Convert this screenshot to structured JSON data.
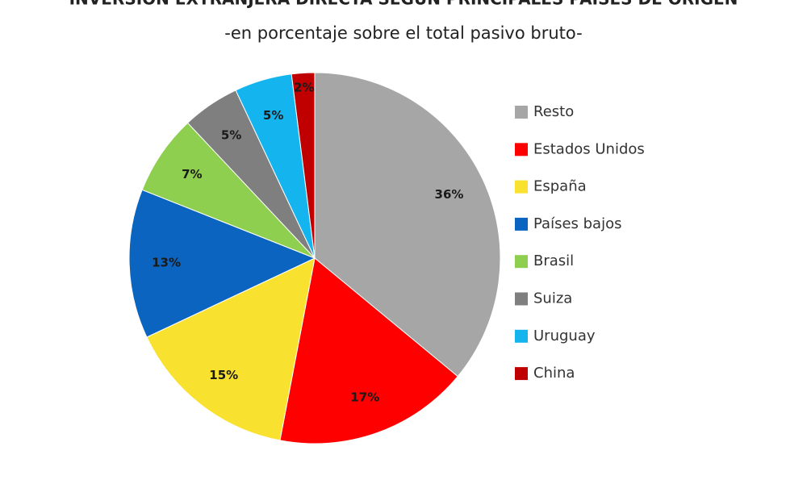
{
  "chart_data": {
    "type": "pie",
    "title": "INVERSIÓN EXTRANJERA DIRECTA SEGÚN PRINCIPALES PAÍSES DE ORIGEN",
    "subtitle": "-en porcentaje sobre el total pasivo bruto-",
    "categories": [
      "Resto",
      "Estados Unidos",
      "España",
      "Países bajos",
      "Brasil",
      "Suiza",
      "Uruguay",
      "China"
    ],
    "values": [
      36,
      17,
      15,
      13,
      7,
      5,
      5,
      2
    ],
    "value_labels": [
      "36%",
      "17%",
      "15%",
      "13%",
      "7%",
      "5%",
      "5%",
      "2%"
    ],
    "colors": [
      "#a6a6a6",
      "#ff0000",
      "#f8e12f",
      "#0b64c0",
      "#8fcf4f",
      "#7f7f7f",
      "#14b4ee",
      "#c00000"
    ],
    "legend": "right"
  }
}
